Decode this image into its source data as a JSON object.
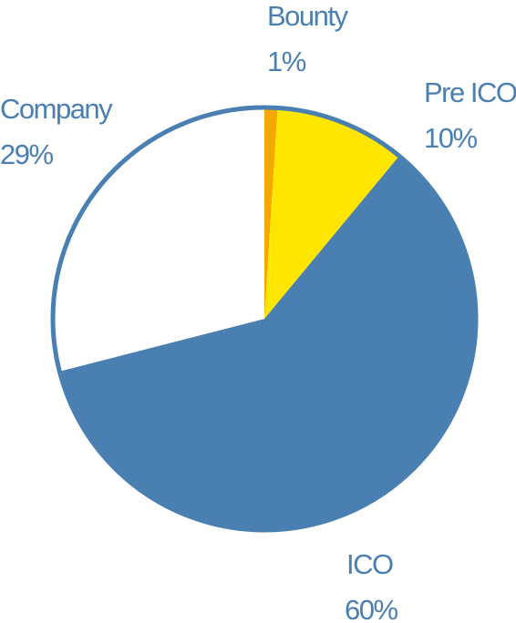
{
  "chart_data": {
    "type": "pie",
    "slices": [
      {
        "label": "Bounty",
        "value": 1,
        "value_label": "1%",
        "color": "#f5a800"
      },
      {
        "label": "Pre ICO",
        "value": 10,
        "value_label": "10%",
        "color": "#ffe600"
      },
      {
        "label": "ICO",
        "value": 60,
        "value_label": "60%",
        "color": "#4a7fb2"
      },
      {
        "label": "Company",
        "value": 29,
        "value_label": "29%",
        "color": "#ffffff"
      }
    ],
    "start_angle": "12 o'clock",
    "direction": "clockwise",
    "outline_color": "#4a7fb2",
    "label_color": "#4a7fb2"
  }
}
